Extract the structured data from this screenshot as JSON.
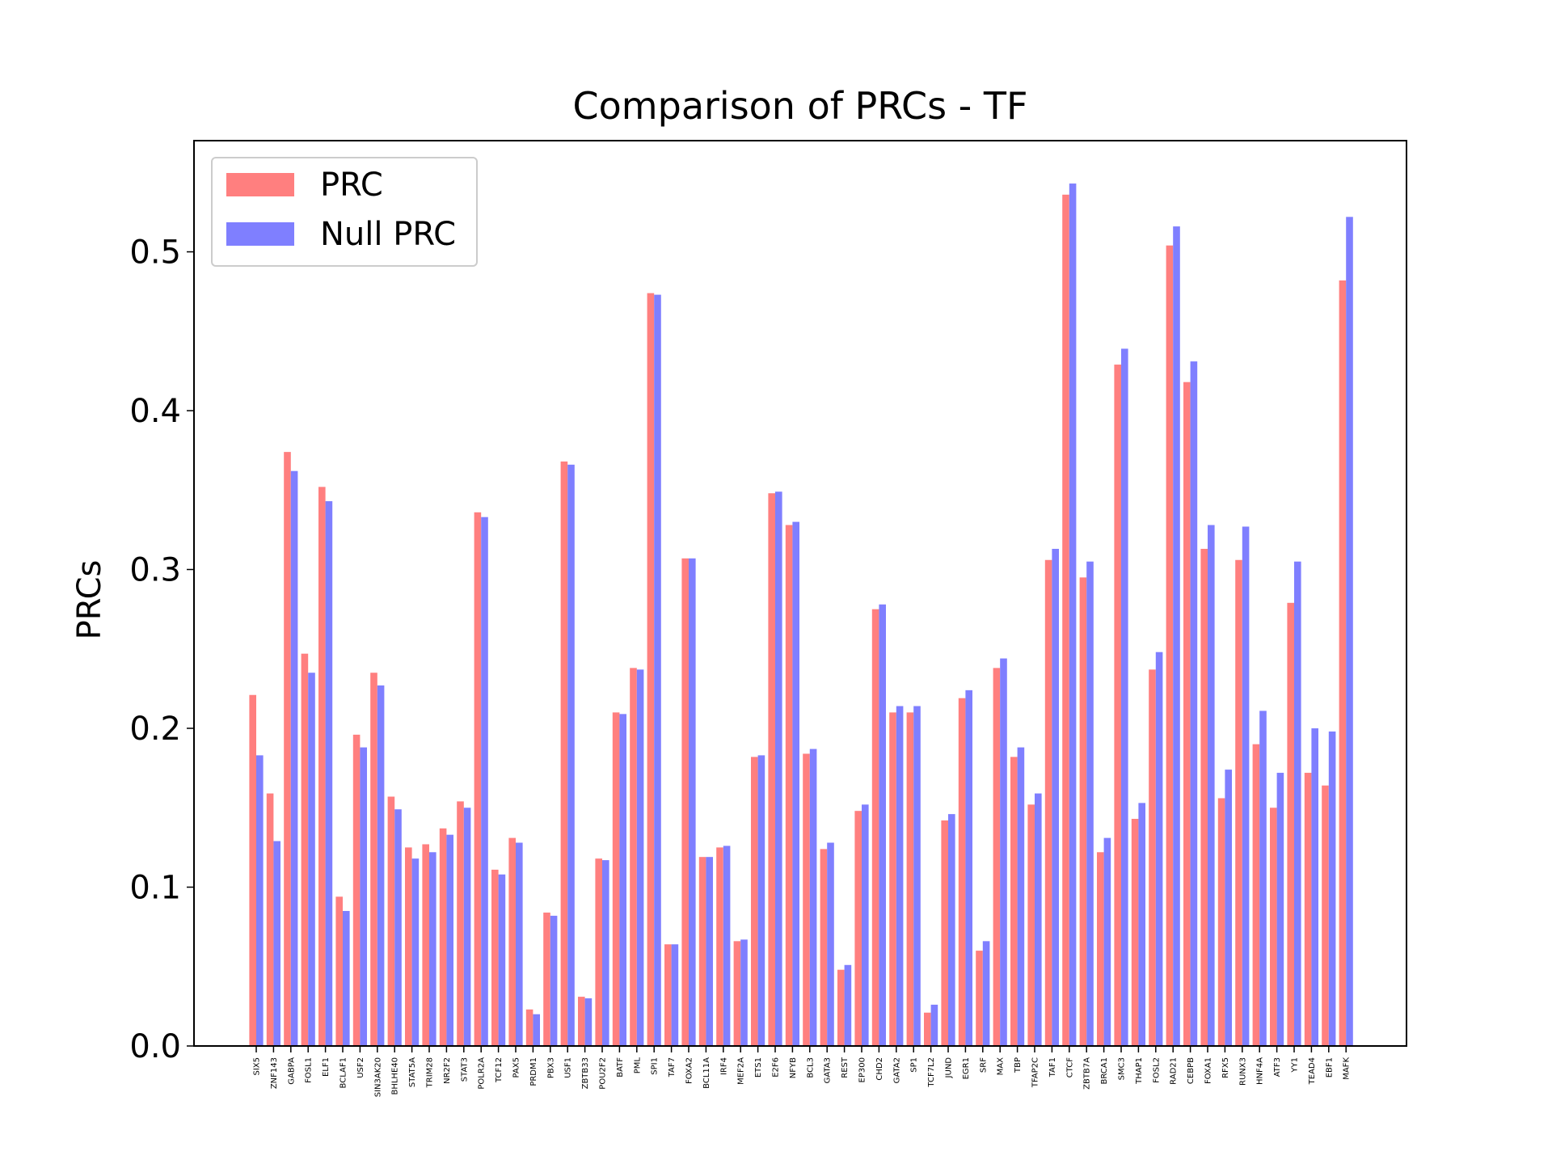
{
  "chart_data": {
    "type": "bar",
    "title": "Comparison of PRCs - TF",
    "xlabel": "",
    "ylabel": "PRCs",
    "ylim": [
      0,
      0.57
    ],
    "yticks": [
      "0.0",
      "0.1",
      "0.2",
      "0.3",
      "0.4",
      "0.5"
    ],
    "ytick_values": [
      0,
      0.1,
      0.2,
      0.3,
      0.4,
      0.5
    ],
    "grid": false,
    "legend_position": "top-left",
    "categories": [
      "SIX5",
      "ZNF143",
      "GABPA",
      "FOSL1",
      "ELF1",
      "BCLAF1",
      "USF2",
      "SIN3AK20",
      "BHLHE40",
      "STAT5A",
      "TRIM28",
      "NR2F2",
      "STAT3",
      "POLR2A",
      "TCF12",
      "PAX5",
      "PRDM1",
      "PBX3",
      "USF1",
      "ZBTB33",
      "POU2F2",
      "BATF",
      "PML",
      "SPI1",
      "TAF7",
      "FOXA2",
      "BCL11A",
      "IRF4",
      "MEF2A",
      "ETS1",
      "E2F6",
      "NFYB",
      "BCL3",
      "GATA3",
      "REST",
      "EP300",
      "CHD2",
      "GATA2",
      "SP1",
      "TCF7L2",
      "JUND",
      "EGR1",
      "SRF",
      "MAX",
      "TBP",
      "TFAP2C",
      "TAF1",
      "CTCF",
      "ZBTB7A",
      "BRCA1",
      "SMC3",
      "THAP1",
      "FOSL2",
      "RAD21",
      "CEBPB",
      "FOXA1",
      "RFX5",
      "RUNX3",
      "HNF4A",
      "ATF3",
      "YY1",
      "TEAD4",
      "EBF1",
      "MAFK"
    ],
    "series": [
      {
        "name": "PRC",
        "color": "#ff7f7f",
        "values": [
          0.221,
          0.159,
          0.374,
          0.247,
          0.352,
          0.094,
          0.196,
          0.235,
          0.157,
          0.125,
          0.127,
          0.137,
          0.154,
          0.336,
          0.111,
          0.131,
          0.023,
          0.084,
          0.368,
          0.031,
          0.118,
          0.21,
          0.238,
          0.474,
          0.064,
          0.307,
          0.119,
          0.125,
          0.066,
          0.182,
          0.348,
          0.328,
          0.184,
          0.124,
          0.048,
          0.148,
          0.275,
          0.21,
          0.21,
          0.021,
          0.142,
          0.219,
          0.06,
          0.238,
          0.182,
          0.152,
          0.306,
          0.536,
          0.295,
          0.122,
          0.429,
          0.143,
          0.237,
          0.504,
          0.418,
          0.313,
          0.156,
          0.306,
          0.19,
          0.15,
          0.279,
          0.172,
          0.164,
          0.482
        ]
      },
      {
        "name": "Null PRC",
        "color": "#7f7fff",
        "values": [
          0.183,
          0.129,
          0.362,
          0.235,
          0.343,
          0.085,
          0.188,
          0.227,
          0.149,
          0.118,
          0.122,
          0.133,
          0.15,
          0.333,
          0.108,
          0.128,
          0.02,
          0.082,
          0.366,
          0.03,
          0.117,
          0.209,
          0.237,
          0.473,
          0.064,
          0.307,
          0.119,
          0.126,
          0.067,
          0.183,
          0.349,
          0.33,
          0.187,
          0.128,
          0.051,
          0.152,
          0.278,
          0.214,
          0.214,
          0.026,
          0.146,
          0.224,
          0.066,
          0.244,
          0.188,
          0.159,
          0.313,
          0.543,
          0.305,
          0.131,
          0.439,
          0.153,
          0.248,
          0.516,
          0.431,
          0.328,
          0.174,
          0.327,
          0.211,
          0.172,
          0.305,
          0.2,
          0.198,
          0.522
        ]
      }
    ]
  }
}
